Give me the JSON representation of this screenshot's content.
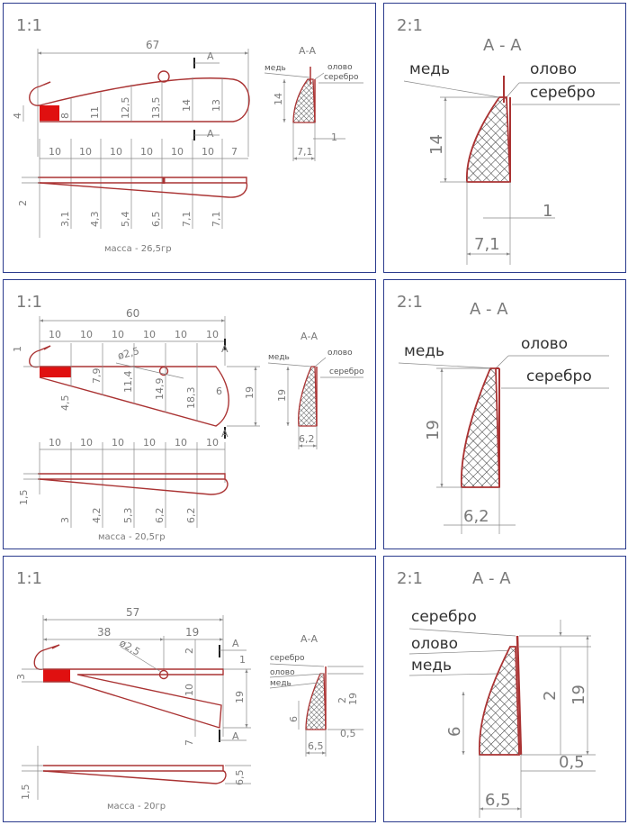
{
  "panels": {
    "p1": {
      "scale": "1:1",
      "length": "67",
      "tail_h": "4",
      "eye_h": "8",
      "heights": [
        "11",
        "12,5",
        "13,5",
        "14",
        "13"
      ],
      "spacing": [
        "10",
        "10",
        "10",
        "10",
        "10",
        "10",
        "7"
      ],
      "thick_left": "2",
      "thicknesses": [
        "3,1",
        "4,3",
        "5,4",
        "6,5",
        "7,1",
        "7,1"
      ],
      "mass": "масса - 26,5гр",
      "section": {
        "label": "А-А",
        "copper": "медь",
        "tin": "олово",
        "silver": "серебро",
        "h": "14",
        "w": "7,1",
        "t": "1"
      }
    },
    "p2": {
      "scale": "2:1",
      "section": {
        "label": "А - А",
        "copper": "медь",
        "tin": "олово",
        "silver": "серебро",
        "h": "14",
        "w": "7,1",
        "t": "1"
      }
    },
    "p3": {
      "scale": "1:1",
      "length": "60",
      "spacing": [
        "10",
        "10",
        "10",
        "10",
        "10",
        "10"
      ],
      "spacing_bottom": [
        "10",
        "10",
        "10",
        "10",
        "10",
        "10"
      ],
      "tail_h": "1",
      "hole": "ø2,5",
      "heights": [
        "4,5",
        "7,9",
        "11,4",
        "14,9",
        "18,3"
      ],
      "end_h": "6",
      "end_full": "19",
      "thick_left": "1,5",
      "thicknesses": [
        "3",
        "4,2",
        "5,3",
        "6,2",
        "6,2"
      ],
      "mass": "масса - 20,5гр",
      "section": {
        "label": "А-А",
        "copper": "медь",
        "tin": "олово",
        "silver": "серебро",
        "h": "19",
        "w": "6,2"
      }
    },
    "p4": {
      "scale": "2:1",
      "section": {
        "label": "А - А",
        "copper": "медь",
        "tin": "олово",
        "silver": "серебро",
        "h": "19",
        "w": "6,2"
      }
    },
    "p5": {
      "scale": "1:1",
      "length": "57",
      "part1": "38",
      "part2": "19",
      "hole": "ø2,5",
      "tail_h": "3",
      "dims_right": [
        "2",
        "10",
        "7",
        "1"
      ],
      "full_h": "19",
      "thick_left": "1,5",
      "thick_right": "6,5",
      "mass": "масса - 20гр",
      "section": {
        "label": "А-А",
        "copper": "медь",
        "tin": "олово",
        "silver": "серебро",
        "h1": "2",
        "h2": "19",
        "h3": "6",
        "w": "6,5",
        "t": "0,5"
      }
    },
    "p6": {
      "scale": "2:1",
      "section": {
        "label": "А - А",
        "copper": "медь",
        "tin": "олово",
        "silver": "серебро",
        "h1": "2",
        "h2": "19",
        "h3": "6",
        "w": "6,5",
        "t": "0,5"
      }
    },
    "section_marker": "А"
  }
}
